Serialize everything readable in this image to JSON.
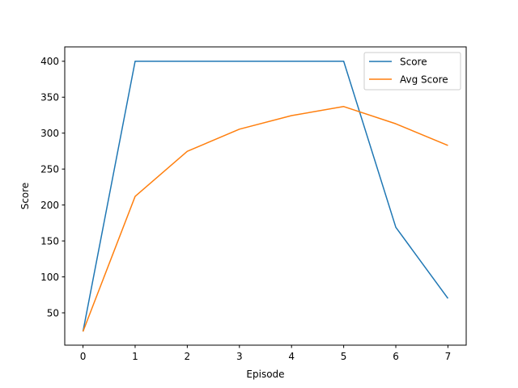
{
  "chart_data": {
    "type": "line",
    "title": "",
    "xlabel": "Episode",
    "ylabel": "Score",
    "x": [
      0,
      1,
      2,
      3,
      4,
      5,
      6,
      7
    ],
    "xlim": [
      -0.35,
      7.35
    ],
    "ylim": [
      5,
      420
    ],
    "xticks": [
      0,
      1,
      2,
      3,
      4,
      5,
      6,
      7
    ],
    "yticks": [
      50,
      100,
      150,
      200,
      250,
      300,
      350,
      400
    ],
    "grid": false,
    "legend_position": "top-right",
    "series": [
      {
        "name": "Score",
        "color": "#1f77b4",
        "values": [
          24,
          400,
          400,
          400,
          400,
          400,
          169,
          70
        ]
      },
      {
        "name": "Avg Score",
        "color": "#ff7f0e",
        "values": [
          24,
          212,
          274.7,
          305.5,
          324.4,
          337.0,
          313.0,
          282.9
        ]
      }
    ]
  }
}
